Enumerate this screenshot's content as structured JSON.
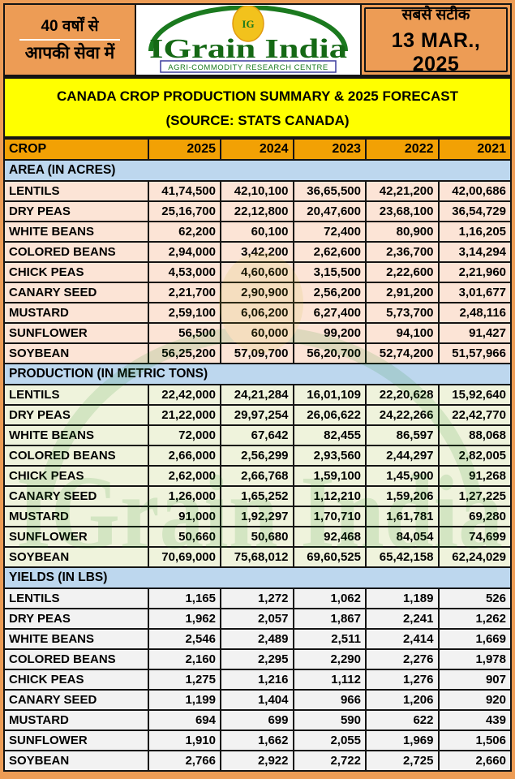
{
  "banner": {
    "left": {
      "line1": "40 वर्षों से",
      "line2": "आपकी सेवा में"
    },
    "logo": {
      "name": "IGrain India",
      "monogram": "IG",
      "subtitle": "AGRI-COMMODITY RESEARCH CENTRE"
    },
    "right": {
      "tagline": "सबसे सटीक",
      "date": "13 MAR., 2025"
    }
  },
  "title": {
    "line1": "CANADA CROP PRODUCTION SUMMARY & 2025 FORECAST",
    "line2": "(SOURCE: STATS CANADA)"
  },
  "table": {
    "crop_header": "CROP",
    "years": [
      "2025",
      "2024",
      "2023",
      "2022",
      "2021"
    ],
    "sections": [
      {
        "label": "AREA (IN ACRES)",
        "rows": [
          {
            "crop": "LENTILS",
            "values": [
              "41,74,500",
              "42,10,100",
              "36,65,500",
              "42,21,200",
              "42,00,686"
            ]
          },
          {
            "crop": "DRY PEAS",
            "values": [
              "25,16,700",
              "22,12,800",
              "20,47,600",
              "23,68,100",
              "36,54,729"
            ]
          },
          {
            "crop": "WHITE BEANS",
            "values": [
              "62,200",
              "60,100",
              "72,400",
              "80,900",
              "1,16,205"
            ]
          },
          {
            "crop": "COLORED BEANS",
            "values": [
              "2,94,000",
              "3,42,200",
              "2,62,600",
              "2,36,700",
              "3,14,294"
            ]
          },
          {
            "crop": "CHICK PEAS",
            "values": [
              "4,53,000",
              "4,60,600",
              "3,15,500",
              "2,22,600",
              "2,21,960"
            ]
          },
          {
            "crop": "CANARY SEED",
            "values": [
              "2,21,700",
              "2,90,900",
              "2,56,200",
              "2,91,200",
              "3,01,677"
            ]
          },
          {
            "crop": "MUSTARD",
            "values": [
              "2,59,100",
              "6,06,200",
              "6,27,400",
              "5,73,700",
              "2,48,116"
            ]
          },
          {
            "crop": "SUNFLOWER",
            "values": [
              "56,500",
              "60,000",
              "99,200",
              "94,100",
              "91,427"
            ]
          },
          {
            "crop": "SOYBEAN",
            "values": [
              "56,25,200",
              "57,09,700",
              "56,20,700",
              "52,74,200",
              "51,57,966"
            ]
          }
        ]
      },
      {
        "label": "PRODUCTION (IN METRIC TONS)",
        "rows": [
          {
            "crop": "LENTILS",
            "values": [
              "22,42,000",
              "24,21,284",
              "16,01,109",
              "22,20,628",
              "15,92,640"
            ]
          },
          {
            "crop": "DRY PEAS",
            "values": [
              "21,22,000",
              "29,97,254",
              "26,06,622",
              "24,22,266",
              "22,42,770"
            ]
          },
          {
            "crop": "WHITE BEANS",
            "values": [
              "72,000",
              "67,642",
              "82,455",
              "86,597",
              "88,068"
            ]
          },
          {
            "crop": "COLORED BEANS",
            "values": [
              "2,66,000",
              "2,56,299",
              "2,93,560",
              "2,44,297",
              "2,82,005"
            ]
          },
          {
            "crop": "CHICK PEAS",
            "values": [
              "2,62,000",
              "2,66,768",
              "1,59,100",
              "1,45,900",
              "91,268"
            ]
          },
          {
            "crop": "CANARY SEED",
            "values": [
              "1,26,000",
              "1,65,252",
              "1,12,210",
              "1,59,206",
              "1,27,225"
            ]
          },
          {
            "crop": "MUSTARD",
            "values": [
              "91,000",
              "1,92,297",
              "1,70,710",
              "1,61,781",
              "69,280"
            ]
          },
          {
            "crop": "SUNFLOWER",
            "values": [
              "50,660",
              "50,680",
              "92,468",
              "84,054",
              "74,699"
            ]
          },
          {
            "crop": "SOYBEAN",
            "values": [
              "70,69,000",
              "75,68,012",
              "69,60,525",
              "65,42,158",
              "62,24,029"
            ]
          }
        ]
      },
      {
        "label": "YIELDS (IN LBS)",
        "rows": [
          {
            "crop": "LENTILS",
            "values": [
              "1,165",
              "1,272",
              "1,062",
              "1,189",
              "526"
            ]
          },
          {
            "crop": "DRY PEAS",
            "values": [
              "1,962",
              "2,057",
              "1,867",
              "2,241",
              "1,262"
            ]
          },
          {
            "crop": "WHITE BEANS",
            "values": [
              "2,546",
              "2,489",
              "2,511",
              "2,414",
              "1,669"
            ]
          },
          {
            "crop": "COLORED BEANS",
            "values": [
              "2,160",
              "2,295",
              "2,290",
              "2,276",
              "1,978"
            ]
          },
          {
            "crop": "CHICK PEAS",
            "values": [
              "1,275",
              "1,216",
              "1,112",
              "1,276",
              "907"
            ]
          },
          {
            "crop": "CANARY SEED",
            "values": [
              "1,199",
              "1,404",
              "966",
              "1,206",
              "920"
            ]
          },
          {
            "crop": "MUSTARD",
            "values": [
              "694",
              "699",
              "590",
              "622",
              "439"
            ]
          },
          {
            "crop": "SUNFLOWER",
            "values": [
              "1,910",
              "1,662",
              "2,055",
              "1,969",
              "1,506"
            ]
          },
          {
            "crop": "SOYBEAN",
            "values": [
              "2,766",
              "2,922",
              "2,722",
              "2,725",
              "2,660"
            ]
          }
        ]
      }
    ]
  },
  "colors": {
    "banner_orange": "#ED9C55",
    "header_amber": "#F2A104",
    "title_yellow": "#FFFF00",
    "section_blue": "#BDD7EE",
    "area_peach": "#FCE4D6",
    "production_green": "#EFF3DC",
    "yields_gray": "#F2F2F2",
    "logo_green": "#156915",
    "border_black": "#141414"
  }
}
